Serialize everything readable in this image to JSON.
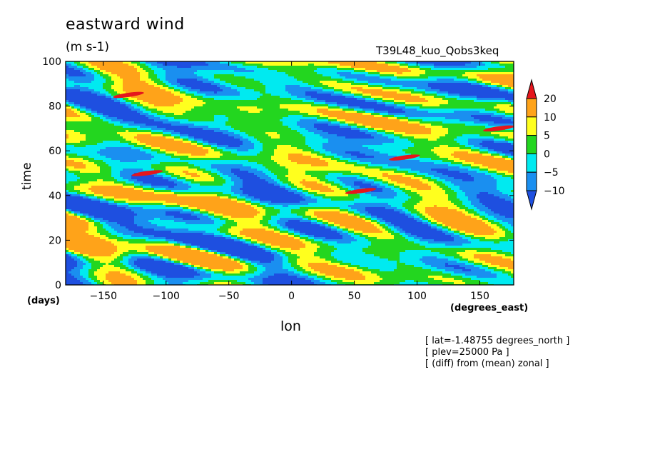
{
  "title": "eastward wind",
  "units": "(m s-1)",
  "run_name": "T39L48_kuo_Qobs3keq",
  "meta_lines": [
    "[ lat=-1.48755 degrees_north ]",
    "[ plev=25000 Pa ]",
    "[ (diff) from (mean) zonal ]"
  ],
  "chart_data": {
    "type": "heatmap",
    "title": "eastward wind",
    "xlabel": "lon",
    "ylabel": "time",
    "x_unit": "(degrees_east)",
    "y_unit": "(days)",
    "xlim": [
      -180,
      177
    ],
    "ylim": [
      0,
      100
    ],
    "xticks": [
      -150,
      -100,
      -50,
      0,
      50,
      100,
      150
    ],
    "yticks": [
      0,
      20,
      40,
      60,
      80,
      100
    ],
    "colorbar": {
      "levels": [
        -10,
        -5,
        0,
        5,
        10,
        20
      ],
      "labels": [
        "20",
        "10",
        "5",
        "0",
        "-5",
        "-10"
      ],
      "colors": [
        "#1e4fe0",
        "#1a8ff0",
        "#00eaf0",
        "#23d61f",
        "#ffff1e",
        "#ffa319",
        "#e5161d"
      ],
      "extend": "both"
    },
    "streaks": [
      {
        "lon": -130,
        "time": 85,
        "value": 20
      },
      {
        "lon": -115,
        "time": 50,
        "value": 20
      },
      {
        "lon": 90,
        "time": 57,
        "value": 20
      },
      {
        "lon": 55,
        "time": 42,
        "value": 20
      },
      {
        "lon": 165,
        "time": 70,
        "value": 20
      }
    ]
  }
}
